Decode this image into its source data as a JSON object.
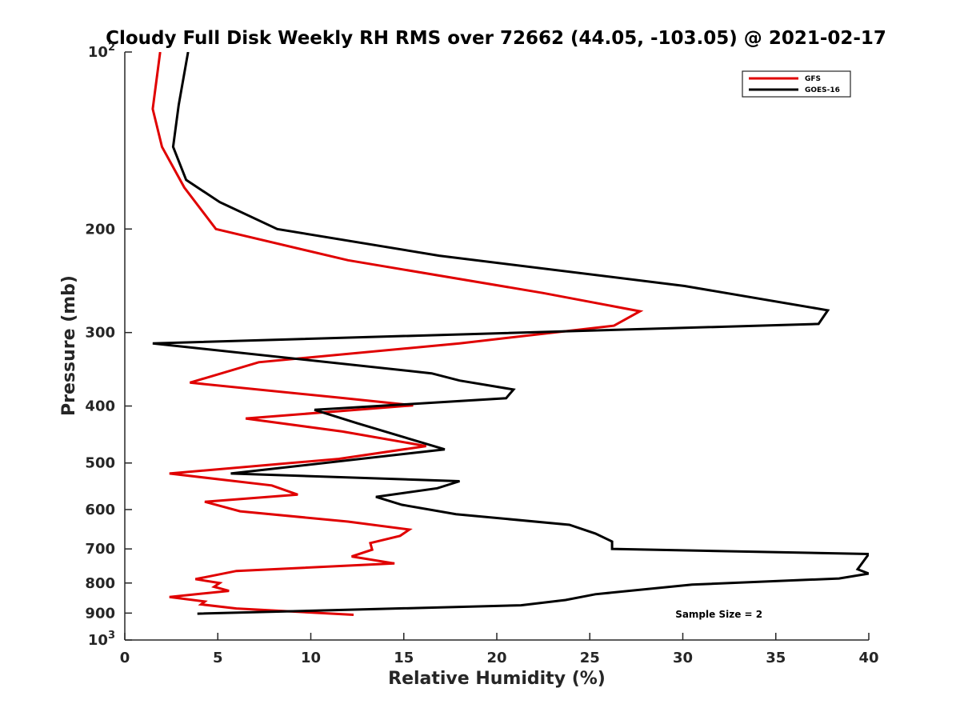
{
  "chart_data": {
    "type": "line",
    "title": "Cloudy Full Disk Weekly RH RMS over 72662 (44.05, -103.05) @ 2021-02-17",
    "xlabel": "Relative Humidity (%)",
    "ylabel": "Pressure (mb)",
    "xlim": [
      0,
      40
    ],
    "ylim": [
      100,
      1000
    ],
    "y_scale": "log",
    "y_reversed": true,
    "grid": false,
    "legend_position": "top-right",
    "x_ticks": [
      "0",
      "5",
      "10",
      "15",
      "20",
      "25",
      "30",
      "35",
      "40"
    ],
    "x_tick_values": [
      0,
      5,
      10,
      15,
      20,
      25,
      30,
      35,
      40
    ],
    "y_ticks": [
      {
        "value": 100,
        "base": "10",
        "exp": "2"
      },
      {
        "value": 200,
        "label": "200"
      },
      {
        "value": 300,
        "label": "300"
      },
      {
        "value": 400,
        "label": "400"
      },
      {
        "value": 500,
        "label": "500"
      },
      {
        "value": 600,
        "label": "600"
      },
      {
        "value": 700,
        "label": "700"
      },
      {
        "value": 800,
        "label": "800"
      },
      {
        "value": 900,
        "label": "900"
      },
      {
        "value": 1000,
        "base": "10",
        "exp": "3"
      }
    ],
    "series": [
      {
        "name": "GFS",
        "color": "#e00000",
        "points": [
          [
            1.9,
            100
          ],
          [
            1.5,
            125
          ],
          [
            2.0,
            145
          ],
          [
            3.2,
            170
          ],
          [
            4.9,
            200
          ],
          [
            12.0,
            226
          ],
          [
            22.5,
            257
          ],
          [
            27.7,
            276
          ],
          [
            26.3,
            292
          ],
          [
            18.0,
            313
          ],
          [
            7.2,
            337
          ],
          [
            3.5,
            365
          ],
          [
            11.5,
            387
          ],
          [
            15.5,
            399
          ],
          [
            6.5,
            420
          ],
          [
            11.7,
            442
          ],
          [
            16.2,
            468
          ],
          [
            11.5,
            492
          ],
          [
            2.4,
            521
          ],
          [
            7.9,
            546
          ],
          [
            9.3,
            566
          ],
          [
            4.3,
            582
          ],
          [
            6.2,
            604
          ],
          [
            12.0,
            629
          ],
          [
            15.3,
            649
          ],
          [
            14.8,
            665
          ],
          [
            13.2,
            684
          ],
          [
            13.3,
            702
          ],
          [
            12.2,
            721
          ],
          [
            14.5,
            741
          ],
          [
            6.0,
            763
          ],
          [
            3.8,
            788
          ],
          [
            5.1,
            800
          ],
          [
            4.8,
            812
          ],
          [
            5.6,
            825
          ],
          [
            2.4,
            845
          ],
          [
            4.3,
            860
          ],
          [
            4.1,
            870
          ],
          [
            6.0,
            884
          ],
          [
            12.3,
            906
          ]
        ]
      },
      {
        "name": "GOES-16",
        "color": "#000000",
        "points": [
          [
            3.4,
            100
          ],
          [
            2.9,
            123
          ],
          [
            2.6,
            145
          ],
          [
            3.3,
            165
          ],
          [
            5.1,
            180
          ],
          [
            8.2,
            200
          ],
          [
            16.9,
            222
          ],
          [
            30.1,
            250
          ],
          [
            37.8,
            275
          ],
          [
            37.3,
            290
          ],
          [
            1.5,
            313
          ],
          [
            16.5,
            352
          ],
          [
            18.0,
            362
          ],
          [
            20.9,
            375
          ],
          [
            20.5,
            388
          ],
          [
            10.2,
            406
          ],
          [
            12.5,
            428
          ],
          [
            17.2,
            474
          ],
          [
            5.7,
            521
          ],
          [
            18.0,
            537
          ],
          [
            16.8,
            552
          ],
          [
            13.5,
            571
          ],
          [
            14.9,
            589
          ],
          [
            17.8,
            611
          ],
          [
            23.9,
            637
          ],
          [
            25.3,
            659
          ],
          [
            26.2,
            680
          ],
          [
            26.2,
            700
          ],
          [
            40.0,
            714
          ],
          [
            39.4,
            758
          ],
          [
            40.0,
            771
          ],
          [
            38.4,
            786
          ],
          [
            30.5,
            805
          ],
          [
            25.3,
            836
          ],
          [
            23.7,
            855
          ],
          [
            21.3,
            873
          ],
          [
            3.9,
            902
          ]
        ]
      }
    ],
    "annotations": [
      {
        "text": "Sample Size = 2",
        "x": 29.6,
        "y": 905
      }
    ]
  }
}
